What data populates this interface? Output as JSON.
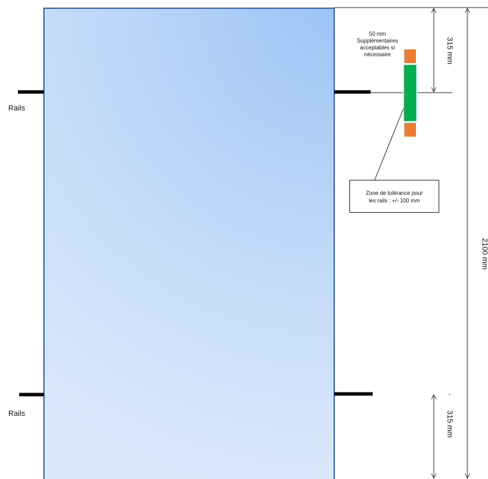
{
  "diagram": {
    "rails_label_top": "Rails",
    "rails_label_bottom": "Rails",
    "dim_top": "315 mm",
    "dim_bottom": "315 mm",
    "dim_total": "2100 mm",
    "extra_note_line1": "50 mm",
    "extra_note_line2": "Supplémentaires",
    "extra_note_line3": "acceptables  si",
    "extra_note_line4": "nécessaire",
    "tolerance_line1": "Zone de tolérance  pour",
    "tolerance_line2": "les rails : +/- 100  mm"
  },
  "colors": {
    "panel_top": "#9ec4f5",
    "panel_bottom": "#d9e8fb",
    "panel_border": "#3d6cc0",
    "tolerance_green": "#00b050",
    "extra_orange": "#ed7d31",
    "rail_black": "#000000"
  }
}
